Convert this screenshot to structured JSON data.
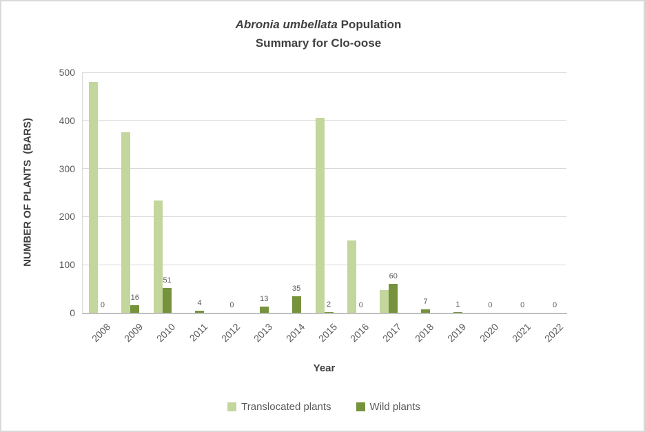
{
  "title": {
    "line1_italic": "Abronia umbellata",
    "line1_rest": " Population",
    "line2": "Summary for Clo-oose"
  },
  "chart_data": {
    "type": "bar",
    "title": "Abronia umbellata Population Summary for Clo-oose",
    "xlabel": "Year",
    "ylabel": "NUMBER OF PLANTS  (BARS)",
    "categories": [
      "2008",
      "2009",
      "2010",
      "2011",
      "2012",
      "2013",
      "2014",
      "2015",
      "2016",
      "2017",
      "2018",
      "2019",
      "2020",
      "2021",
      "2022"
    ],
    "series": [
      {
        "name": "Translocated plants",
        "color": "#c3d69b",
        "values": [
          480,
          375,
          233,
          0,
          0,
          0,
          0,
          405,
          150,
          47,
          0,
          0,
          0,
          0,
          0
        ],
        "data_labels": false
      },
      {
        "name": "Wild plants",
        "color": "#76923c",
        "values": [
          0,
          16,
          51,
          4,
          0,
          13,
          35,
          2,
          0,
          60,
          7,
          1,
          0,
          0,
          0
        ],
        "data_labels": true
      }
    ],
    "ylim": [
      0,
      500
    ],
    "yticks": [
      0,
      100,
      200,
      300,
      400,
      500
    ],
    "grid": "horizontal",
    "legend_position": "bottom",
    "colors": {
      "gridline": "#d9d9d9",
      "axis_line": "#bfbfbf",
      "title_text": "#404040",
      "tick_text": "#595959",
      "data_label_text": "#595959"
    }
  }
}
